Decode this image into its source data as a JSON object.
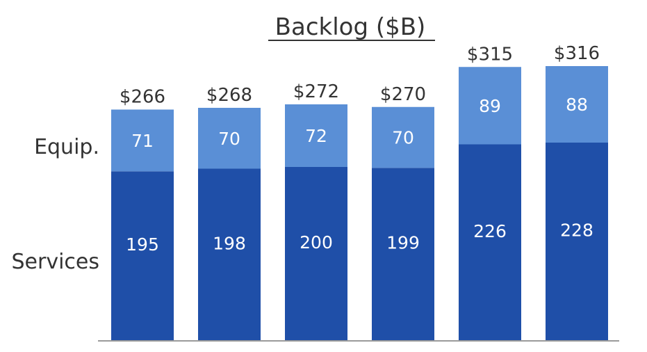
{
  "chart_data": {
    "type": "bar",
    "stacked": true,
    "title": "Backlog ($B)",
    "categories": [
      "",
      "",
      "",
      "",
      "",
      ""
    ],
    "series": [
      {
        "name": "Services",
        "values": [
          195,
          198,
          200,
          199,
          226,
          228
        ],
        "color": "#1f4fa8"
      },
      {
        "name": "Equip.",
        "values": [
          71,
          70,
          72,
          70,
          89,
          88
        ],
        "color": "#5a8fd6"
      }
    ],
    "totals": [
      "$266",
      "$268",
      "$272",
      "$270",
      "$315",
      "$316"
    ],
    "ylim": [
      0,
      360
    ],
    "grid": false,
    "legend": "left"
  }
}
